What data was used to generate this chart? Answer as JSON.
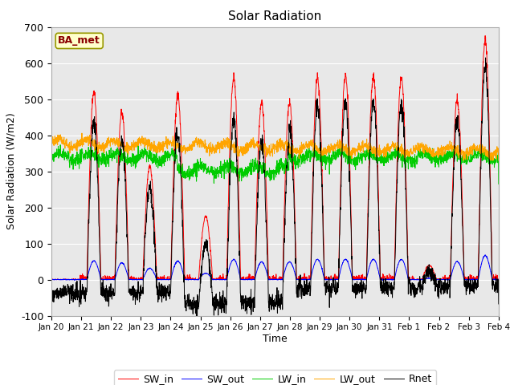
{
  "title": "Solar Radiation",
  "xlabel": "Time",
  "ylabel": "Solar Radiation (W/m2)",
  "ylim": [
    -100,
    700
  ],
  "yticks": [
    -100,
    0,
    100,
    200,
    300,
    400,
    500,
    600,
    700
  ],
  "annotation": "BA_met",
  "bg_color": "#e8e8e8",
  "series": {
    "SW_in": {
      "color": "#ff0000",
      "label": "SW_in"
    },
    "SW_out": {
      "color": "#0000ff",
      "label": "SW_out"
    },
    "LW_in": {
      "color": "#00cc00",
      "label": "LW_in"
    },
    "LW_out": {
      "color": "#ffa500",
      "label": "LW_out"
    },
    "Rnet": {
      "color": "#000000",
      "label": "Rnet"
    }
  },
  "xtick_labels": [
    "Jan 20",
    "Jan 21",
    "Jan 22",
    "Jan 23",
    "Jan 24",
    "Jan 25",
    "Jan 26",
    "Jan 27",
    "Jan 28",
    "Jan 29",
    "Jan 30",
    "Jan 31",
    "Feb 1",
    "Feb 2",
    "Feb 3",
    "Feb 4"
  ],
  "n_days": 16,
  "pts_per_day": 144,
  "sw_in_peaks": [
    0,
    520,
    465,
    315,
    510,
    175,
    560,
    490,
    490,
    560,
    565,
    565,
    560,
    40,
    500,
    660
  ],
  "lw_in_base": 340,
  "lw_out_base": 370
}
